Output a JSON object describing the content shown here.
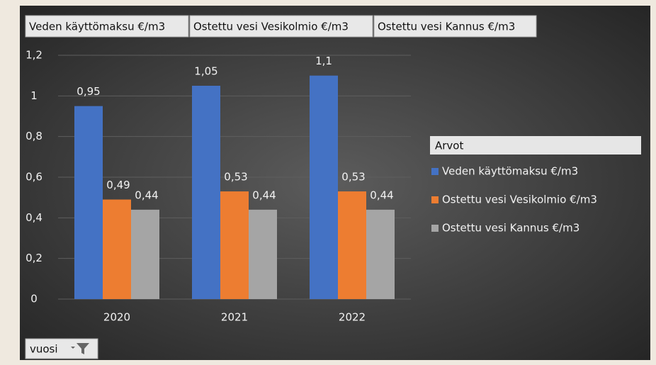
{
  "chart_data": {
    "type": "bar",
    "categories": [
      "2020",
      "2021",
      "2022"
    ],
    "series": [
      {
        "name": "Veden käyttömaksu €/m3",
        "color": "#4472c4",
        "values": [
          0.95,
          1.05,
          1.1
        ],
        "value_labels": [
          "0,95",
          "1,05",
          "1,1"
        ]
      },
      {
        "name": "Ostettu vesi Vesikolmio €/m3",
        "color": "#ed7d31",
        "values": [
          0.49,
          0.53,
          0.53
        ],
        "value_labels": [
          "0,49",
          "0,53",
          "0,53"
        ]
      },
      {
        "name": "Ostettu vesi Kannus €/m3",
        "color": "#a5a5a5",
        "values": [
          0.44,
          0.44,
          0.44
        ],
        "value_labels": [
          "0,44",
          "0,44",
          "0,44"
        ]
      }
    ],
    "ylim": [
      0,
      1.2
    ],
    "yticks": [
      0,
      {
        "value": 0.2,
        "label": "0,2"
      },
      {
        "value": 0.4,
        "label": "0,4"
      },
      {
        "value": 0.6,
        "label": "0,6"
      },
      {
        "value": 0.8,
        "label": "0,8"
      },
      1,
      {
        "value": 1.2,
        "label": "1,2"
      }
    ],
    "grid": true,
    "legend_title": "Arvot",
    "legend_position": "right"
  },
  "filter_button": {
    "label": "vuosi"
  }
}
